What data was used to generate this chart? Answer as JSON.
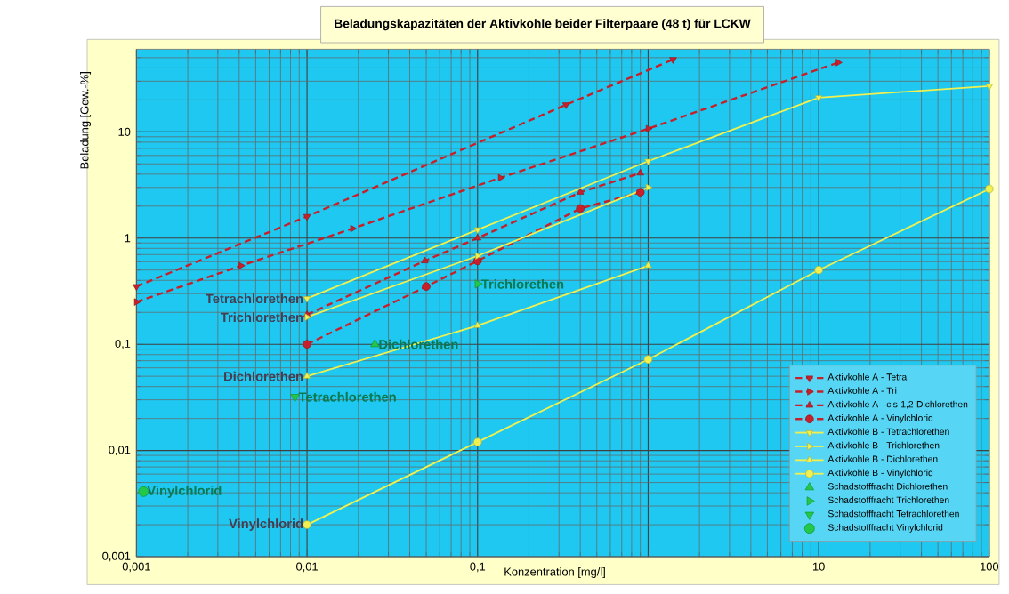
{
  "chart_data": {
    "type": "line",
    "title": "Beladungskapazitäten der Aktivkohle beider Filterpaare (48 t) für LCKW",
    "xlabel": "Konzentration [mg/l]",
    "ylabel": "Beladung [Gew.-%]",
    "log": "xy",
    "grid": true,
    "legend": "bottom right",
    "xlim": [
      0.001,
      100
    ],
    "ylim": [
      0.001,
      60
    ],
    "xticks": [
      {
        "value": 0.001,
        "label": "0,001"
      },
      {
        "value": 0.01,
        "label": "0,01"
      },
      {
        "value": 0.1,
        "label": "0,1"
      },
      {
        "value": 1,
        "label": null
      },
      10,
      100
    ],
    "yticks": [
      {
        "value": 0.001,
        "label": "0,001"
      },
      {
        "value": 0.01,
        "label": "0,01"
      },
      {
        "value": 0.1,
        "label": "0,1"
      },
      1,
      10
    ],
    "series": [
      {
        "name": "Aktivkohle A - Tetra",
        "type": "line",
        "line_style": "dashed",
        "marker": "triangle-down",
        "color": "#c8202a",
        "x": [
          0.001,
          0.01,
          0.33,
          1.4
        ],
        "values": [
          0.35,
          1.6,
          18,
          48
        ]
      },
      {
        "name": "Aktivkohle A - Tri",
        "type": "line",
        "line_style": "dashed",
        "marker": "triangle-right",
        "color": "#c8202a",
        "x": [
          0.001,
          0.0041,
          0.0185,
          0.136,
          1.0,
          13
        ],
        "values": [
          0.25,
          0.55,
          1.23,
          3.7,
          10.7,
          45
        ]
      },
      {
        "name": "Aktivkohle A - cis-1,2-Dichlorethen",
        "type": "line",
        "line_style": "dashed",
        "marker": "triangle",
        "color": "#c8202a",
        "x": [
          0.01,
          0.049,
          0.1,
          0.4,
          0.9
        ],
        "values": [
          0.19,
          0.61,
          1.0,
          2.7,
          4.1
        ]
      },
      {
        "name": "Aktivkohle A - Vinylchlorid",
        "type": "line",
        "line_style": "dashed",
        "marker": "circle",
        "color": "#c8202a",
        "x": [
          0.01,
          0.05,
          0.1,
          0.4,
          0.9
        ],
        "values": [
          0.1,
          0.35,
          0.61,
          1.9,
          2.7
        ]
      },
      {
        "name": "Aktivkohle B - Tetrachlorethen",
        "type": "line",
        "line_style": "solid",
        "marker": "triangle-down",
        "color": "#f0f050",
        "x": [
          0.01,
          0.1,
          1,
          10,
          100
        ],
        "values": [
          0.27,
          1.2,
          5.3,
          21,
          27
        ]
      },
      {
        "name": "Aktivkohle B - Trichlorethen",
        "type": "line",
        "line_style": "solid",
        "marker": "triangle-right",
        "color": "#f0f050",
        "x": [
          0.01,
          0.1,
          1
        ],
        "values": [
          0.18,
          0.68,
          3.0
        ]
      },
      {
        "name": "Aktivkohle B - Dichlorethen",
        "type": "line",
        "line_style": "solid",
        "marker": "triangle",
        "color": "#f0f050",
        "x": [
          0.01,
          0.1,
          1
        ],
        "values": [
          0.05,
          0.15,
          0.55
        ]
      },
      {
        "name": "Aktivkohle B - Vinylchlorid",
        "type": "line",
        "line_style": "solid",
        "marker": "circle",
        "color": "#f0f050",
        "x": [
          0.01,
          0.1,
          1,
          10,
          100
        ],
        "values": [
          0.002,
          0.012,
          0.072,
          0.5,
          2.9
        ]
      },
      {
        "name": "Schadstofffracht Dichlorethen",
        "type": "scatter",
        "marker": "triangle",
        "color": "#22c84a",
        "x": [
          0.025
        ],
        "values": [
          0.1
        ]
      },
      {
        "name": "Schadstofffracht Trichlorethen",
        "type": "scatter",
        "marker": "triangle-right",
        "color": "#22c84a",
        "x": [
          0.1
        ],
        "values": [
          0.37
        ]
      },
      {
        "name": "Schadstofffracht Tetrachlorethen",
        "type": "scatter",
        "marker": "triangle-down",
        "color": "#22c84a",
        "x": [
          0.0085
        ],
        "values": [
          0.032
        ]
      },
      {
        "name": "Schadstofffracht Vinylchlorid",
        "type": "scatter",
        "marker": "circle",
        "color": "#22c84a",
        "x": [
          0.0011
        ],
        "values": [
          0.0041
        ]
      }
    ],
    "annotations": [
      {
        "text": "Tetrachlorethen",
        "x": 0.01,
        "y": 0.27
      },
      {
        "text": "Trichlorethen",
        "x": 0.01,
        "y": 0.18
      },
      {
        "text": "Dichlorethen",
        "x": 0.01,
        "y": 0.05
      },
      {
        "text": "Vinylchlorid",
        "x": 0.01,
        "y": 0.002
      },
      {
        "text": "Dichlorethen",
        "x": 0.025,
        "y": 0.1
      },
      {
        "text": "Trichlorethen",
        "x": 0.1,
        "y": 0.37
      },
      {
        "text": "Tetrachlorethen",
        "x": 0.0085,
        "y": 0.032
      },
      {
        "text": "Vinylchlorid",
        "x": 0.0011,
        "y": 0.0041
      }
    ]
  }
}
